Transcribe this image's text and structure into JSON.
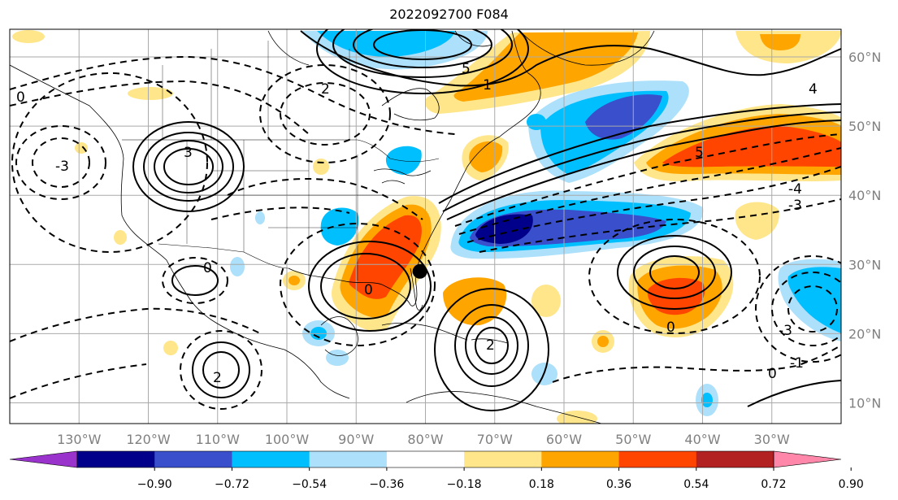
{
  "title": "2022092700 F084",
  "map": {
    "projection": "equirectangular",
    "lon_range": [
      -140,
      -20
    ],
    "lat_range": [
      7,
      64
    ],
    "grid": true,
    "lon_ticks": [
      "130°W",
      "120°W",
      "110°W",
      "100°W",
      "90°W",
      "80°W",
      "70°W",
      "60°W",
      "50°W",
      "40°W",
      "30°W"
    ],
    "lat_ticks": [
      "60°N",
      "50°N",
      "40°N",
      "30°N",
      "20°N",
      "10°N"
    ],
    "marker": {
      "name": "black-dot",
      "lon": -80.8,
      "lat": 29.0
    }
  },
  "colorbar": {
    "ticks": [
      "−0.90",
      "−0.72",
      "−0.54",
      "−0.36",
      "−0.18",
      "0.18",
      "0.36",
      "0.54",
      "0.72",
      "0.90"
    ],
    "colors": [
      "#9933cc",
      "#00008b",
      "#3a4fcc",
      "#00bfff",
      "#ade0fa",
      "#ffffff",
      "#ffe68a",
      "#ffa500",
      "#ff4500",
      "#b22222",
      "#ff88aa"
    ],
    "extend": "both"
  },
  "contour_labels": [
    "-3",
    "3",
    "-2",
    "2",
    "0",
    "-1",
    "1",
    "-5",
    "5",
    "-4",
    "4",
    "-3",
    "3",
    "0",
    "-2"
  ],
  "colors": {
    "coast": "#000000",
    "grid": "#aaaaaa",
    "contour": "#000000"
  }
}
